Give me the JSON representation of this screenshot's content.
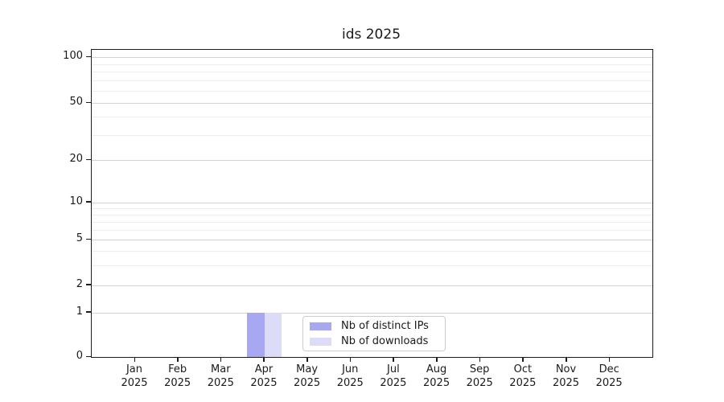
{
  "chart_data": {
    "type": "bar",
    "title": "ids 2025",
    "categories": [
      "Jan 2025",
      "Feb 2025",
      "Mar 2025",
      "Apr 2025",
      "May 2025",
      "Jun 2025",
      "Jul 2025",
      "Aug 2025",
      "Sep 2025",
      "Oct 2025",
      "Nov 2025",
      "Dec 2025"
    ],
    "series": [
      {
        "name": "Nb of distinct IPs",
        "color": "#a8a8f2",
        "values": [
          0,
          0,
          0,
          1,
          0,
          0,
          0,
          0,
          0,
          0,
          0,
          0
        ]
      },
      {
        "name": "Nb of downloads",
        "color": "#dcdcf8",
        "values": [
          0,
          0,
          0,
          1,
          0,
          0,
          0,
          0,
          0,
          0,
          0,
          0
        ]
      }
    ],
    "xlabel": "",
    "ylabel": "",
    "yscale": "log-like",
    "ylim": [
      0,
      110
    ],
    "y_tick_values": [
      0,
      1,
      2,
      5,
      10,
      20,
      50,
      100
    ],
    "grid": true,
    "legend": {
      "entries": [
        "Nb of distinct IPs",
        "Nb of downloads"
      ],
      "position": "lower center"
    }
  }
}
